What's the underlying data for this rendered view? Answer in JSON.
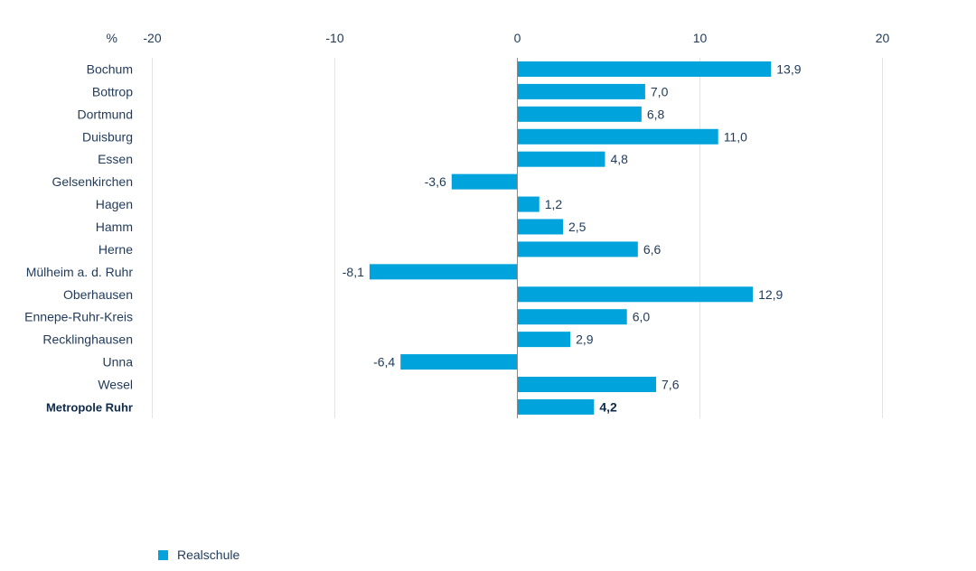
{
  "chart_data": {
    "type": "bar",
    "orientation": "horizontal",
    "unit_label": "%",
    "xlim": [
      -20,
      20
    ],
    "xticks": [
      -20,
      -10,
      0,
      10,
      20
    ],
    "xtick_labels": [
      "-20",
      "-10",
      "0",
      "10",
      "20"
    ],
    "grid": true,
    "legend_position": "bottom-left",
    "categories": [
      "Bochum",
      "Bottrop",
      "Dortmund",
      "Duisburg",
      "Essen",
      "Gelsenkirchen",
      "Hagen",
      "Hamm",
      "Herne",
      "Mülheim a. d. Ruhr",
      "Oberhausen",
      "Ennepe-Ruhr-Kreis",
      "Recklinghausen",
      "Unna",
      "Wesel",
      "Metropole Ruhr"
    ],
    "highlight_category": "Metropole Ruhr",
    "series": [
      {
        "name": "Realschule",
        "color": "#00a3dc",
        "values": [
          13.9,
          7.0,
          6.8,
          11.0,
          4.8,
          -3.6,
          1.2,
          2.5,
          6.6,
          -8.1,
          12.9,
          6.0,
          2.9,
          -6.4,
          7.6,
          4.2
        ],
        "value_labels": [
          "13,9",
          "7,0",
          "6,8",
          "11,0",
          "4,8",
          "-3,6",
          "1,2",
          "2,5",
          "6,6",
          "-8,1",
          "12,9",
          "6,0",
          "2,9",
          "-6,4",
          "7,6",
          "4,2"
        ]
      }
    ]
  }
}
